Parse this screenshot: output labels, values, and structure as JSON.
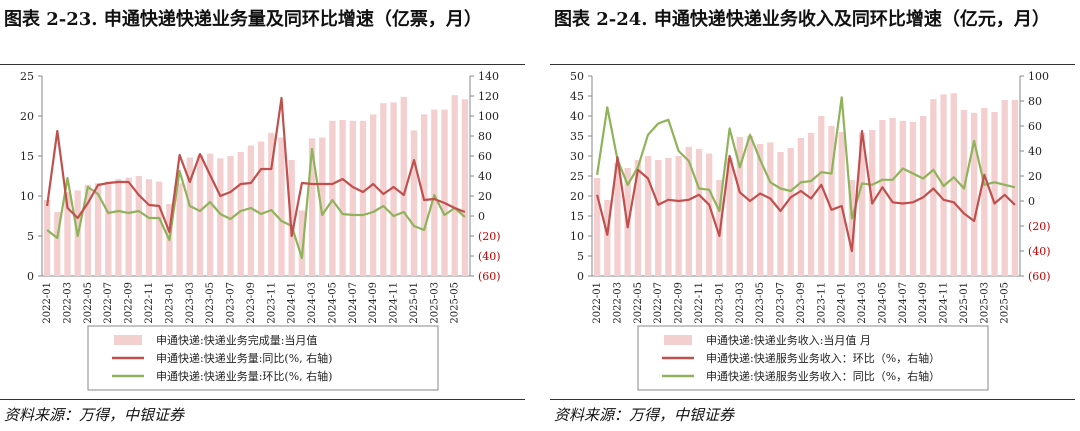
{
  "charts": [
    {
      "figure_title": "图表 2-23. 申通快递快递业务量及同环比增速（亿票，月）",
      "source": "资料来源：万得，中银证券",
      "chart_data": {
        "type": "bar",
        "categories": [
          "2022-01",
          "2022-02",
          "2022-03",
          "2022-04",
          "2022-05",
          "2022-06",
          "2022-07",
          "2022-08",
          "2022-09",
          "2022-10",
          "2022-11",
          "2022-12",
          "2023-01",
          "2023-02",
          "2023-03",
          "2023-04",
          "2023-05",
          "2023-06",
          "2023-07",
          "2023-08",
          "2023-09",
          "2023-10",
          "2023-11",
          "2023-12",
          "2024-01",
          "2024-02",
          "2024-03",
          "2024-04",
          "2024-05",
          "2024-06",
          "2024-07",
          "2024-08",
          "2024-09",
          "2024-10",
          "2024-11",
          "2024-12",
          "2025-01",
          "2025-02",
          "2025-03",
          "2025-04",
          "2025-05",
          "2025-06"
        ],
        "x_tick_labels": [
          "2022-01",
          "2022-03",
          "2022-05",
          "2022-07",
          "2022-09",
          "2022-11",
          "2023-01",
          "2023-03",
          "2023-05",
          "2023-07",
          "2023-09",
          "2023-11",
          "2024-01",
          "2024-03",
          "2024-05",
          "2024-07",
          "2024-09",
          "2024-11",
          "2025-01",
          "2025-03",
          "2025-05"
        ],
        "left_axis": {
          "ylim": [
            0,
            25
          ],
          "ticks": [
            "0",
            "5",
            "10",
            "15",
            "20",
            "25"
          ]
        },
        "right_axis": {
          "ylim": [
            -60,
            140
          ],
          "ticks": [
            "(60)",
            "(40)",
            "(20)",
            "0",
            "20",
            "40",
            "60",
            "80",
            "100",
            "120",
            "140"
          ]
        },
        "series": [
          {
            "name": "申通快递:快递业务完成量:当月值",
            "kind": "bar",
            "axis": "left",
            "color": "#f4cfcf",
            "values": [
              9.5,
              8.0,
              10.5,
              10.7,
              11.4,
              11.6,
              11.8,
              12.1,
              12.3,
              12.5,
              12.1,
              11.8,
              9.0,
              11.6,
              14.8,
              15.1,
              15.3,
              14.7,
              15.0,
              15.5,
              16.3,
              16.8,
              17.9,
              17.3,
              14.5,
              8.2,
              17.2,
              17.3,
              19.4,
              19.5,
              19.4,
              19.4,
              20.2,
              21.6,
              21.7,
              22.4,
              18.2,
              20.2,
              20.8,
              20.8,
              22.6,
              22.1
            ]
          },
          {
            "name": "申通快递:快递业务量:同比(%, 右轴)",
            "kind": "line",
            "axis": "right",
            "color": "#c0504d",
            "values": [
              10,
              85,
              8,
              -2,
              13,
              31,
              33,
              34,
              34,
              21,
              11,
              10,
              -16,
              61,
              34,
              62,
              41,
              20,
              24,
              32,
              33,
              47,
              47,
              118,
              -20,
              33,
              32,
              32,
              32,
              37,
              29,
              24,
              32,
              22,
              29,
              21,
              56,
              16,
              17,
              13,
              8,
              4
            ]
          },
          {
            "name": "申通快递:快递业务量:环比(%, 右轴)",
            "kind": "line",
            "axis": "right",
            "color": "#8fb35a",
            "values": [
              -14,
              -22,
              38,
              -20,
              29,
              22,
              3,
              5,
              3,
              5,
              -2,
              -2,
              -24,
              45,
              10,
              5,
              14,
              2,
              -3,
              5,
              8,
              2,
              6,
              -5,
              -10,
              -42,
              67,
              1,
              16,
              2,
              1,
              1,
              4,
              10,
              0,
              4,
              -10,
              -14,
              21,
              1,
              8,
              -1
            ]
          }
        ]
      }
    },
    {
      "figure_title": "图表 2-24. 申通快递快递业务收入及同环比增速（亿元，月）",
      "source": "资料来源：万得，中银证券",
      "chart_data": {
        "type": "bar",
        "categories": [
          "2022-01",
          "2022-02",
          "2022-03",
          "2022-04",
          "2022-05",
          "2022-06",
          "2022-07",
          "2022-08",
          "2022-09",
          "2022-10",
          "2022-11",
          "2022-12",
          "2023-01",
          "2023-02",
          "2023-03",
          "2023-04",
          "2023-05",
          "2023-06",
          "2023-07",
          "2023-08",
          "2023-09",
          "2023-10",
          "2023-11",
          "2023-12",
          "2024-01",
          "2024-02",
          "2024-03",
          "2024-04",
          "2024-05",
          "2024-06",
          "2024-07",
          "2024-08",
          "2024-09",
          "2024-10",
          "2024-11",
          "2024-12",
          "2025-01",
          "2025-02",
          "2025-03",
          "2025-04",
          "2025-05",
          "2025-06"
        ],
        "x_tick_labels": [
          "2022-01",
          "2022-03",
          "2022-05",
          "2022-07",
          "2022-09",
          "2022-11",
          "2023-01",
          "2023-03",
          "2023-05",
          "2023-07",
          "2023-09",
          "2023-11",
          "2024-01",
          "2024-03",
          "2024-05",
          "2024-07",
          "2024-09",
          "2024-11",
          "2025-01",
          "2025-03",
          "2025-05"
        ],
        "left_axis": {
          "ylim": [
            0,
            50
          ],
          "ticks": [
            "0",
            "5",
            "10",
            "15",
            "20",
            "25",
            "30",
            "35",
            "40",
            "45",
            "50"
          ]
        },
        "right_axis": {
          "ylim": [
            -60,
            100
          ],
          "ticks": [
            "(60)",
            "(40)",
            "(20)",
            "0",
            "20",
            "40",
            "60",
            "80",
            "100"
          ]
        },
        "series": [
          {
            "name": "申通快递:快递业务收入:当月值 月",
            "kind": "bar",
            "axis": "left",
            "color": "#f4cfcf",
            "values": [
              24.5,
              19.0,
              28.2,
              27.0,
              29.0,
              30.0,
              29.0,
              29.5,
              30.0,
              32.3,
              31.8,
              30.6,
              24.0,
              29.5,
              34.8,
              35.0,
              33.0,
              33.4,
              31.0,
              32.0,
              34.5,
              35.8,
              40.0,
              37.5,
              36.0,
              24.0,
              35.8,
              36.5,
              39.0,
              39.5,
              38.8,
              38.5,
              40.0,
              44.2,
              45.4,
              45.7,
              41.5,
              40.8,
              42.0,
              41.0,
              44.0,
              44.0
            ]
          },
          {
            "name": "申通快递:快递服务业务收入：环比（%，右轴）",
            "kind": "line",
            "axis": "right",
            "color": "#c0504d",
            "values": [
              5,
              -27,
              35,
              -21,
              25,
              18,
              -3,
              1,
              0,
              1,
              5,
              -3,
              -28,
              36,
              7,
              0,
              6,
              2,
              -8,
              3,
              8,
              2,
              13,
              -7,
              -4,
              -40,
              56,
              -2,
              11,
              -1,
              -2,
              -1,
              3,
              10,
              1,
              -1,
              -10,
              -16,
              21,
              -2,
              5,
              -3
            ]
          },
          {
            "name": "申通快递:快递服务业务收入：同比（%，右轴）",
            "kind": "line",
            "axis": "right",
            "color": "#8fb35a",
            "values": [
              21,
              75,
              33,
              13,
              27,
              53,
              62,
              65,
              40,
              32,
              10,
              9,
              -8,
              58,
              27,
              53,
              33,
              15,
              10,
              8,
              15,
              16,
              23,
              22,
              83,
              -14,
              14,
              13,
              17,
              17,
              26,
              22,
              18,
              25,
              12,
              19,
              10,
              48,
              13,
              15,
              13,
              11
            ]
          }
        ]
      }
    }
  ]
}
